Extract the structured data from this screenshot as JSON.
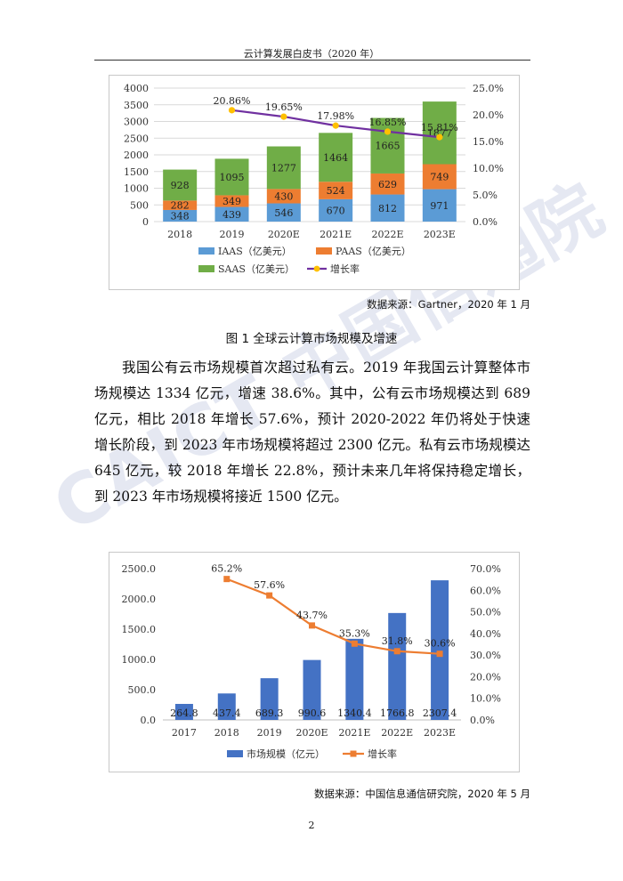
{
  "header": {
    "title": "云计算发展白皮书（2020 年）"
  },
  "watermark": {
    "text": "CAICT 中国信通院"
  },
  "figure1": {
    "source": "数据来源：Gartner，2020 年 1 月",
    "caption": "图 1 全球云计算市场规模及增速"
  },
  "figure2": {
    "source": "数据来源：中国信息通信研究院，2020 年 5 月"
  },
  "body": {
    "paragraph": "我国公有云市场规模首次超过私有云。2019 年我国云计算整体市场规模达 1334 亿元，增速 38.6%。其中，公有云市场规模达到 689 亿元，相比 2018 年增长 57.6%，预计 2020-2022 年仍将处于快速增长阶段，到 2023 年市场规模将超过 2300 亿元。私有云市场规模达 645 亿元，较 2018 年增长 22.8%，预计未来几年将保持稳定增长，到 2023 年市场规模将接近 1500 亿元。"
  },
  "page_number": "2",
  "chart_data": [
    {
      "type": "bar",
      "stacked": true,
      "categories": [
        "2018",
        "2019",
        "2020E",
        "2021E",
        "2022E",
        "2023E"
      ],
      "series": [
        {
          "name": "IAAS（亿美元）",
          "color": "#5b9bd5",
          "values": [
            348,
            439,
            546,
            670,
            812,
            971
          ]
        },
        {
          "name": "PAAS（亿美元）",
          "color": "#ed7d31",
          "values": [
            282,
            349,
            430,
            524,
            629,
            749
          ]
        },
        {
          "name": "SAAS（亿美元）",
          "color": "#70ad47",
          "values": [
            928,
            1095,
            1277,
            1464,
            1665,
            1877
          ]
        }
      ],
      "line_series": {
        "name": "增长率",
        "color": "#7030a0",
        "marker_color": "#ffc000",
        "values": [
          null,
          20.86,
          19.65,
          17.98,
          16.85,
          15.81
        ],
        "labels": [
          "",
          "20.86%",
          "19.65%",
          "17.98%",
          "16.85%",
          "15.81%"
        ]
      },
      "y_ticks": [
        "0",
        "500",
        "1000",
        "1500",
        "2000",
        "2500",
        "3000",
        "3500",
        "4000"
      ],
      "y2_ticks": [
        "0.0%",
        "5.0%",
        "10.0%",
        "15.0%",
        "20.0%",
        "25.0%"
      ],
      "ylim": [
        0,
        4000
      ],
      "y2lim": [
        0,
        25
      ],
      "grid": true,
      "legend_position": "bottom"
    },
    {
      "type": "bar",
      "categories": [
        "2017",
        "2018",
        "2019",
        "2020E",
        "2021E",
        "2022E",
        "2023E"
      ],
      "series": [
        {
          "name": "市场规模（亿元）",
          "color": "#4472c4",
          "values": [
            264.8,
            437.4,
            689.3,
            990.6,
            1340.4,
            1766.8,
            2307.4
          ],
          "labels": [
            "264.8",
            "437.4",
            "689.3",
            "990.6",
            "1340.4",
            "1766.8",
            "2307.4"
          ]
        }
      ],
      "line_series": {
        "name": "增长率",
        "color": "#ed7d31",
        "marker_color": "#ed7d31",
        "values": [
          null,
          65.2,
          57.6,
          43.7,
          35.3,
          31.8,
          30.6
        ],
        "labels": [
          "",
          "65.2%",
          "57.6%",
          "43.7%",
          "35.3%",
          "31.8%",
          "30.6%"
        ]
      },
      "y_ticks": [
        "0.0",
        "500.0",
        "1000.0",
        "1500.0",
        "2000.0",
        "2500.0"
      ],
      "y2_ticks": [
        "0.0%",
        "10.0%",
        "20.0%",
        "30.0%",
        "40.0%",
        "50.0%",
        "60.0%",
        "70.0%"
      ],
      "ylim": [
        0,
        2500
      ],
      "y2lim": [
        0,
        70
      ],
      "grid": false,
      "legend_position": "bottom"
    }
  ]
}
